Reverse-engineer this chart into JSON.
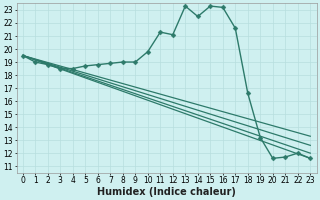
{
  "xlabel": "Humidex (Indice chaleur)",
  "bg_color": "#cff0f0",
  "grid_color": "#b8dede",
  "line_color": "#2d7a6a",
  "xlim": [
    -0.5,
    23.5
  ],
  "ylim": [
    10.5,
    23.5
  ],
  "xticks": [
    0,
    1,
    2,
    3,
    4,
    5,
    6,
    7,
    8,
    9,
    10,
    11,
    12,
    13,
    14,
    15,
    16,
    17,
    18,
    19,
    20,
    21,
    22,
    23
  ],
  "yticks": [
    11,
    12,
    13,
    14,
    15,
    16,
    17,
    18,
    19,
    20,
    21,
    22,
    23
  ],
  "main_x": [
    0,
    1,
    2,
    3,
    4,
    5,
    6,
    7,
    8,
    9,
    10,
    11,
    12,
    13,
    14,
    15,
    16,
    17,
    18,
    19,
    20,
    21,
    22,
    23
  ],
  "main_y": [
    19.5,
    19.0,
    18.8,
    18.5,
    18.5,
    18.7,
    18.8,
    18.9,
    19.0,
    19.0,
    19.8,
    21.3,
    21.1,
    23.3,
    22.5,
    23.3,
    23.2,
    21.6,
    16.6,
    13.2,
    11.6,
    11.7,
    12.0,
    11.6
  ],
  "diag_lines": [
    {
      "x": [
        0,
        23
      ],
      "y": [
        19.5,
        11.6
      ]
    },
    {
      "x": [
        0,
        23
      ],
      "y": [
        19.5,
        12.0
      ]
    },
    {
      "x": [
        0,
        23
      ],
      "y": [
        19.5,
        12.6
      ]
    },
    {
      "x": [
        0,
        23
      ],
      "y": [
        19.5,
        13.3
      ]
    }
  ],
  "marker": "D",
  "markersize": 2.5,
  "linewidth": 1.0,
  "fontsize_xlabel": 7,
  "fontsize_ticks": 5.5
}
